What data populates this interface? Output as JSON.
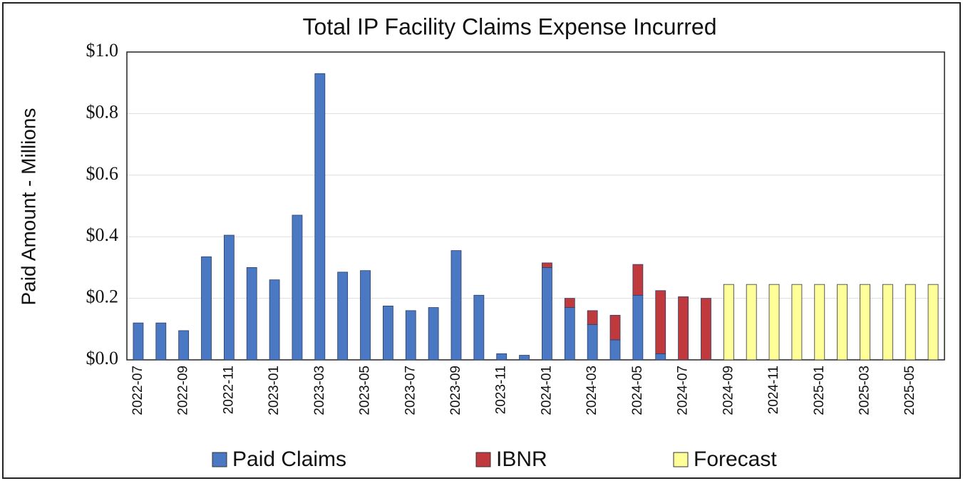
{
  "chart_data": {
    "type": "bar",
    "stacked": true,
    "title": "Total IP Facility Claims Expense Incurred",
    "y_label": "Paid Amount - Millions",
    "categories": [
      "2022-07",
      null,
      "2022-09",
      null,
      "2022-11",
      null,
      "2023-01",
      null,
      "2023-03",
      null,
      "2023-05",
      null,
      "2023-07",
      null,
      "2023-09",
      null,
      "2023-11",
      null,
      "2024-01",
      null,
      "2024-03",
      null,
      "2024-05",
      null,
      "2024-07",
      null,
      "2024-09",
      null,
      "2024-11",
      null,
      "2025-01",
      null,
      "2025-03",
      null,
      "2025-05",
      null
    ],
    "series": [
      {
        "name": "Paid Claims",
        "color": "#4a78c2",
        "values": [
          0.12,
          0.12,
          0.095,
          0.335,
          0.405,
          0.3,
          0.26,
          0.47,
          0.93,
          0.285,
          0.29,
          0.175,
          0.16,
          0.17,
          0.355,
          0.21,
          0.02,
          0.015,
          0.3,
          0.17,
          0.115,
          0.065,
          0.21,
          0.02,
          null,
          null,
          null,
          null,
          null,
          null,
          null,
          null,
          null,
          null,
          null,
          null
        ]
      },
      {
        "name": "IBNR",
        "color": "#c0393c",
        "values": [
          null,
          null,
          null,
          null,
          null,
          null,
          null,
          null,
          null,
          null,
          null,
          null,
          null,
          null,
          null,
          null,
          null,
          null,
          0.015,
          0.03,
          0.045,
          0.08,
          0.1,
          0.205,
          0.205,
          0.2,
          null,
          null,
          null,
          null,
          null,
          null,
          null,
          null,
          null,
          null
        ]
      },
      {
        "name": "Forecast",
        "color": "#ffff99",
        "values": [
          null,
          null,
          null,
          null,
          null,
          null,
          null,
          null,
          null,
          null,
          null,
          null,
          null,
          null,
          null,
          null,
          null,
          null,
          null,
          null,
          null,
          null,
          null,
          null,
          null,
          null,
          0.245,
          0.245,
          0.245,
          0.245,
          0.245,
          0.245,
          0.245,
          0.245,
          0.245,
          0.245
        ]
      }
    ],
    "ylim": [
      0,
      1
    ],
    "yticks": [
      {
        "value": 0,
        "label": "$0.0"
      },
      {
        "value": 0.2,
        "label": "$0.2"
      },
      {
        "value": 0.4,
        "label": "$0.4"
      },
      {
        "value": 0.6,
        "label": "$0.6"
      },
      {
        "value": 0.8,
        "label": "$0.8"
      },
      {
        "value": 1,
        "label": "$1.0"
      }
    ],
    "grid": true,
    "legend": "bottom"
  }
}
